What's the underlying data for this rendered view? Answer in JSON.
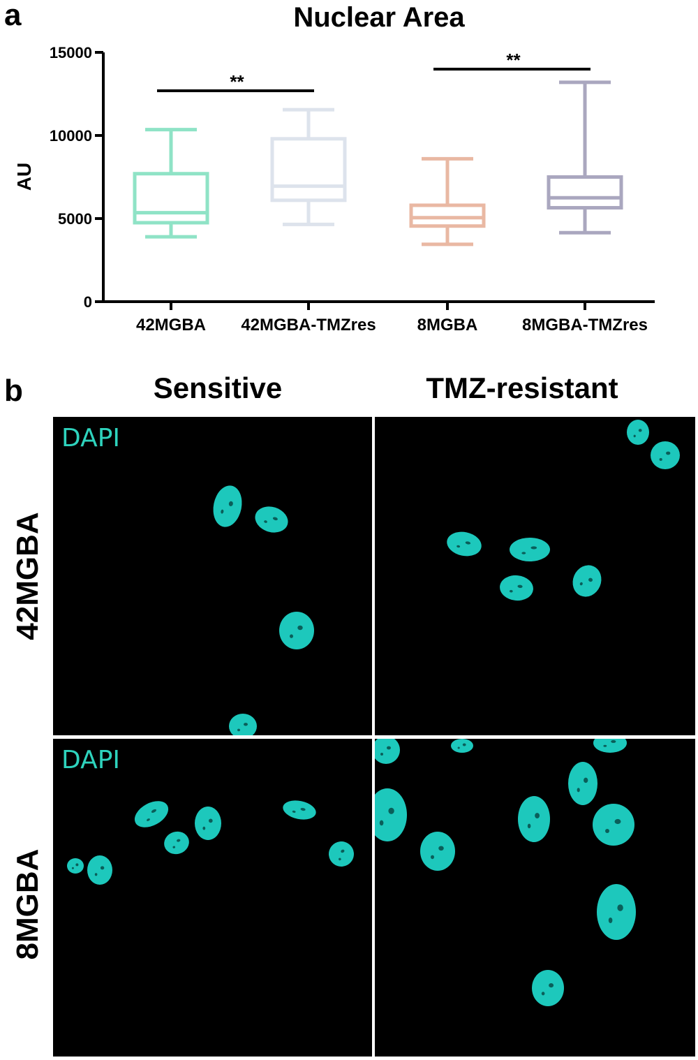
{
  "panel_a_letter": "a",
  "panel_b_letter": "b",
  "chart_data": {
    "type": "box",
    "title": "Nuclear Area",
    "ylabel": "AU",
    "xlabel": "",
    "ylim": [
      0,
      15000
    ],
    "yticks": [
      0,
      5000,
      10000,
      15000
    ],
    "categories": [
      "42MGBA",
      "42MGBA-TMZres",
      "8MGBA",
      "8MGBA-TMZres"
    ],
    "boxes": [
      {
        "category": "42MGBA",
        "min": 3900,
        "q1": 4750,
        "median": 5350,
        "q3": 7700,
        "max": 10350,
        "color": "#8fe3c6"
      },
      {
        "category": "42MGBA-TMZres",
        "min": 4650,
        "q1": 6100,
        "median": 6950,
        "q3": 9800,
        "max": 11550,
        "color": "#dde3ec"
      },
      {
        "category": "8MGBA",
        "min": 3450,
        "q1": 4550,
        "median": 5050,
        "q3": 5800,
        "max": 8600,
        "color": "#e9b8a3"
      },
      {
        "category": "8MGBA-TMZres",
        "min": 4150,
        "q1": 5650,
        "median": 6250,
        "q3": 7500,
        "max": 13200,
        "color": "#aaa7bf"
      }
    ],
    "significance": [
      {
        "from": "42MGBA",
        "to": "42MGBA-TMZres",
        "label": "**"
      },
      {
        "from": "8MGBA",
        "to": "8MGBA-TMZres",
        "label": "**"
      }
    ],
    "grid": false
  },
  "panel_b": {
    "columns": [
      "Sensitive",
      "TMZ-resistant"
    ],
    "rows": [
      "42MGBA",
      "8MGBA"
    ],
    "stain_label": "DAPI",
    "stain_color": "#2ed3bd",
    "nucleus_color": "#1fd3c6"
  }
}
